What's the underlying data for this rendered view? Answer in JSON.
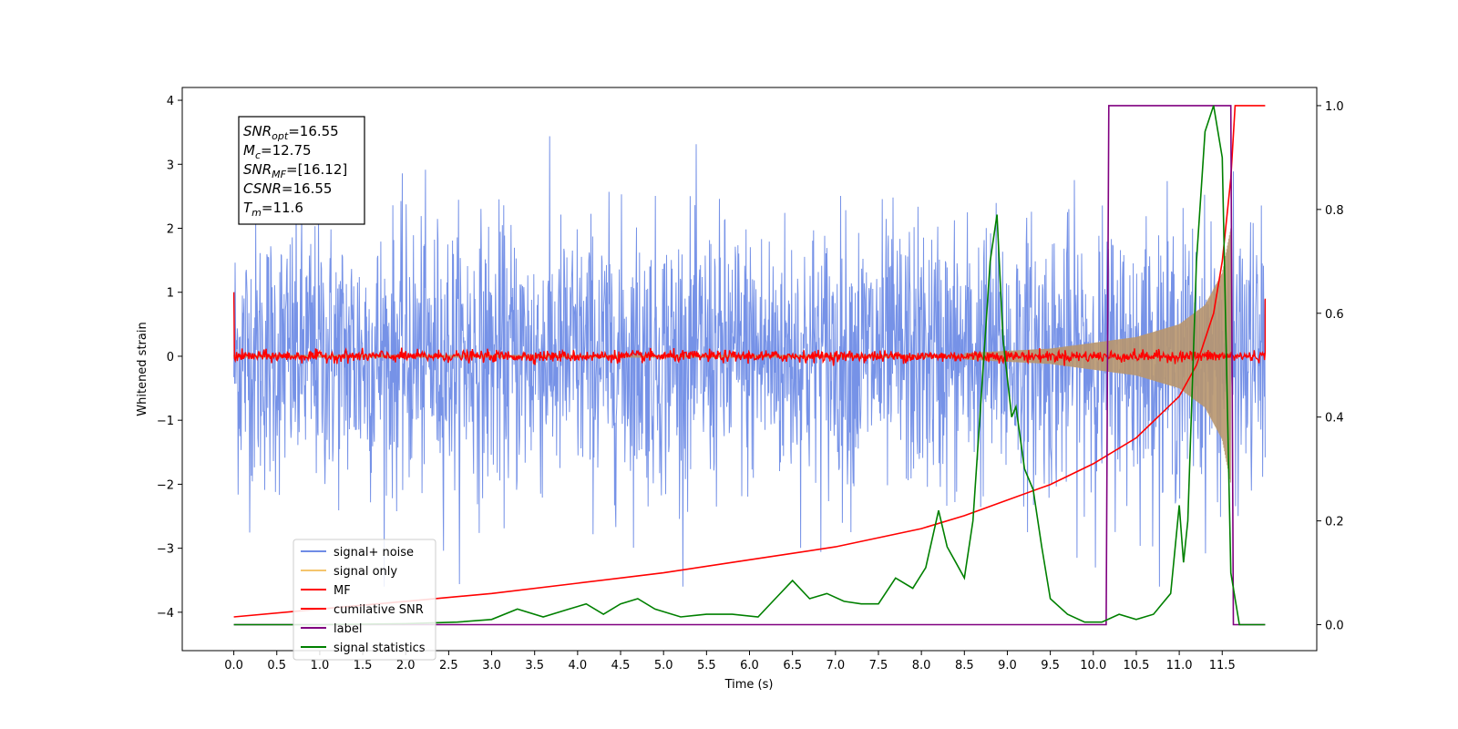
{
  "chart_data": {
    "type": "line",
    "xlabel": "Time (s)",
    "ylabel": "Whitened strain",
    "ylabel_right": "",
    "xlim": [
      -0.6,
      12.6
    ],
    "ylim": [
      -4.6,
      4.2
    ],
    "ylim_right": [
      -0.05,
      1.035
    ],
    "x_ticks": [
      "0.0",
      "0.5",
      "1.0",
      "1.5",
      "2.0",
      "2.5",
      "3.0",
      "3.5",
      "4.0",
      "4.5",
      "5.0",
      "5.5",
      "6.0",
      "6.5",
      "7.0",
      "7.5",
      "8.0",
      "8.5",
      "9.0",
      "9.5",
      "10.0",
      "10.5",
      "11.0",
      "11.5"
    ],
    "y_ticks_left": [
      "4",
      "3",
      "2",
      "1",
      "0",
      "−1",
      "−2",
      "−3",
      "−4"
    ],
    "y_ticks_right": [
      "1.0",
      "0.8",
      "0.6",
      "0.4",
      "0.2",
      "0.0"
    ],
    "grid": false,
    "legend_position": "lower-left",
    "info_box": {
      "lines": [
        {
          "symbol": "SNR",
          "sub": "opt",
          "value": "=16.55"
        },
        {
          "symbol": "M",
          "sub": "c",
          "value": "=12.75"
        },
        {
          "symbol": "SNR",
          "sub": "MF",
          "value": "=[16.12]"
        },
        {
          "symbol": "CSNR",
          "sub": "",
          "value": "=16.55"
        },
        {
          "symbol": "T",
          "sub": "m",
          "value": "=11.6"
        }
      ]
    },
    "series": [
      {
        "name": "signal+ noise",
        "color": "#6f8ce6",
        "axis": "left",
        "style": "noise",
        "x_range": [
          0,
          12
        ],
        "envelope_approx": [
          -2.6,
          2.6
        ]
      },
      {
        "name": "signal only",
        "color": "#f4c56d",
        "axis": "left",
        "style": "chirp",
        "x_range": [
          0,
          11.6
        ],
        "amplitude_points": [
          [
            8.5,
            0.05
          ],
          [
            9.5,
            0.12
          ],
          [
            10.5,
            0.3
          ],
          [
            11.0,
            0.5
          ],
          [
            11.3,
            0.8
          ],
          [
            11.5,
            1.3
          ],
          [
            11.6,
            2.0
          ]
        ]
      },
      {
        "name": "MF",
        "color": "#ff0000",
        "axis": "left",
        "style": "flat-noise",
        "x_range": [
          0,
          12
        ],
        "level": 0.0,
        "spread": 0.1,
        "edge_values": [
          1.0,
          0.9
        ]
      },
      {
        "name": "cumilative SNR",
        "color": "#ff0000",
        "axis": "right",
        "points": [
          [
            0.0,
            0.015
          ],
          [
            1.0,
            0.03
          ],
          [
            2.0,
            0.045
          ],
          [
            3.0,
            0.06
          ],
          [
            4.0,
            0.08
          ],
          [
            5.0,
            0.1
          ],
          [
            6.0,
            0.125
          ],
          [
            7.0,
            0.15
          ],
          [
            8.0,
            0.185
          ],
          [
            8.5,
            0.21
          ],
          [
            9.0,
            0.24
          ],
          [
            9.5,
            0.27
          ],
          [
            10.0,
            0.31
          ],
          [
            10.5,
            0.36
          ],
          [
            11.0,
            0.44
          ],
          [
            11.2,
            0.5
          ],
          [
            11.4,
            0.6
          ],
          [
            11.5,
            0.7
          ],
          [
            11.6,
            0.86
          ],
          [
            11.65,
            1.0
          ],
          [
            12.0,
            1.0
          ]
        ]
      },
      {
        "name": "label",
        "color": "#800080",
        "axis": "right",
        "points": [
          [
            0.0,
            0.0
          ],
          [
            10.15,
            0.0
          ],
          [
            10.18,
            1.0
          ],
          [
            11.6,
            1.0
          ],
          [
            11.63,
            0.0
          ],
          [
            12.0,
            0.0
          ]
        ]
      },
      {
        "name": "signal statistics",
        "color": "#008000",
        "axis": "right",
        "points": [
          [
            0.0,
            0.0
          ],
          [
            1.0,
            0.0
          ],
          [
            2.0,
            0.002
          ],
          [
            2.6,
            0.005
          ],
          [
            3.0,
            0.01
          ],
          [
            3.3,
            0.03
          ],
          [
            3.6,
            0.015
          ],
          [
            3.9,
            0.03
          ],
          [
            4.1,
            0.04
          ],
          [
            4.3,
            0.02
          ],
          [
            4.5,
            0.04
          ],
          [
            4.7,
            0.05
          ],
          [
            4.9,
            0.03
          ],
          [
            5.2,
            0.015
          ],
          [
            5.5,
            0.02
          ],
          [
            5.8,
            0.02
          ],
          [
            6.1,
            0.015
          ],
          [
            6.3,
            0.05
          ],
          [
            6.5,
            0.085
          ],
          [
            6.7,
            0.05
          ],
          [
            6.9,
            0.06
          ],
          [
            7.1,
            0.045
          ],
          [
            7.3,
            0.04
          ],
          [
            7.5,
            0.04
          ],
          [
            7.7,
            0.09
          ],
          [
            7.9,
            0.07
          ],
          [
            8.05,
            0.11
          ],
          [
            8.2,
            0.22
          ],
          [
            8.3,
            0.15
          ],
          [
            8.4,
            0.12
          ],
          [
            8.5,
            0.09
          ],
          [
            8.6,
            0.2
          ],
          [
            8.7,
            0.45
          ],
          [
            8.8,
            0.7
          ],
          [
            8.88,
            0.79
          ],
          [
            8.95,
            0.55
          ],
          [
            9.05,
            0.4
          ],
          [
            9.1,
            0.42
          ],
          [
            9.2,
            0.3
          ],
          [
            9.3,
            0.26
          ],
          [
            9.4,
            0.15
          ],
          [
            9.5,
            0.05
          ],
          [
            9.7,
            0.02
          ],
          [
            9.9,
            0.005
          ],
          [
            10.1,
            0.005
          ],
          [
            10.3,
            0.02
          ],
          [
            10.5,
            0.01
          ],
          [
            10.7,
            0.02
          ],
          [
            10.9,
            0.06
          ],
          [
            11.0,
            0.23
          ],
          [
            11.05,
            0.12
          ],
          [
            11.1,
            0.2
          ],
          [
            11.2,
            0.7
          ],
          [
            11.3,
            0.95
          ],
          [
            11.4,
            1.0
          ],
          [
            11.5,
            0.9
          ],
          [
            11.6,
            0.1
          ],
          [
            11.7,
            0.0
          ],
          [
            12.0,
            0.0
          ]
        ]
      }
    ]
  }
}
